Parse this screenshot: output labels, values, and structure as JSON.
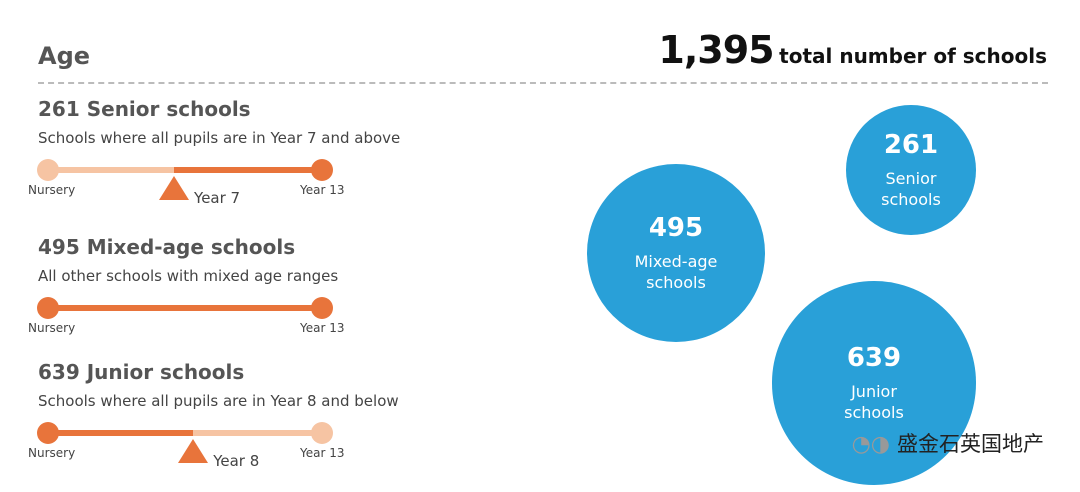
{
  "header": {
    "title": "Age",
    "total": {
      "value": 1395,
      "label": "1,395"
    },
    "total_text": "total number of schools"
  },
  "groups": [
    {
      "count": 261,
      "name": "Senior schools",
      "description": "Schools where all pupils are in Year 7 and above",
      "scale": {
        "start": "Nursery",
        "end": "Year 13",
        "marker": "Year 7",
        "highlight": "upper"
      }
    },
    {
      "count": 495,
      "name": "Mixed-age schools",
      "description": "All other schools with mixed age ranges",
      "scale": {
        "start": "Nursery",
        "end": "Year 13",
        "highlight": "all"
      }
    },
    {
      "count": 639,
      "name": "Junior schools",
      "description": "Schools where all pupils are in Year 8 and below",
      "scale": {
        "start": "Nursery",
        "end": "Year 13",
        "marker": "Year 8",
        "highlight": "lower"
      }
    }
  ],
  "watermark": "盛金石英国地产"
}
